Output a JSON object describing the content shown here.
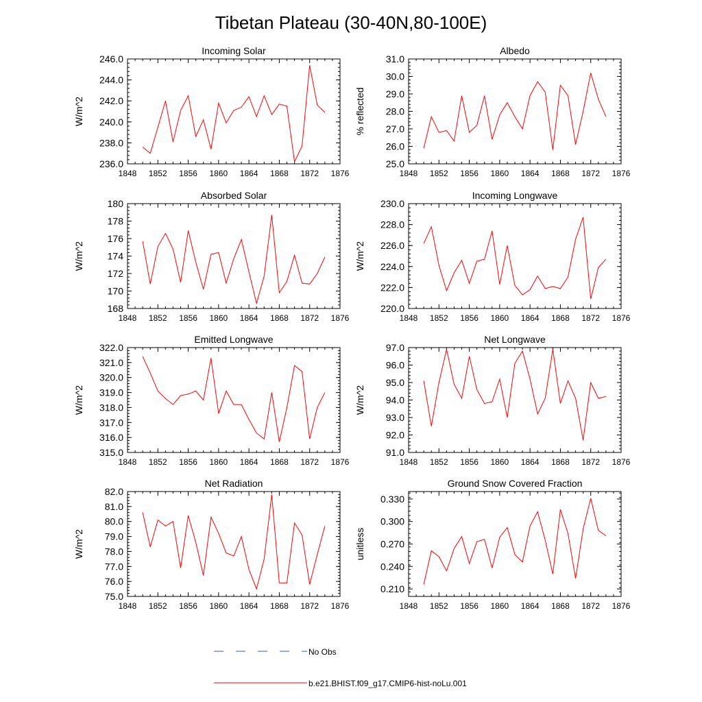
{
  "figure": {
    "title": "Tibetan Plateau (30-40N,80-100E)",
    "line_color": "#ff0000",
    "obs_color": "#3a4fd8",
    "legend": {
      "obs_label": "No Obs",
      "model_label": "b.e21.BHIST.f09_g17.CMIP6-hist-noLu.001"
    }
  },
  "chart_data": [
    {
      "type": "line",
      "title": "Incoming Solar",
      "ylabel": "W/m^2",
      "xlim": [
        1848,
        1876
      ],
      "xticks": [
        1848,
        1852,
        1856,
        1860,
        1864,
        1868,
        1872,
        1876
      ],
      "ylim": [
        236.0,
        246.0
      ],
      "yticks": [
        "236.0",
        "238.0",
        "240.0",
        "242.0",
        "244.0",
        "246.0"
      ],
      "series": [
        {
          "name": "b.e21.BHIST.f09_g17.CMIP6-hist-noLu.001",
          "x": [
            1850,
            1851,
            1852,
            1853,
            1854,
            1855,
            1856,
            1857,
            1858,
            1859,
            1860,
            1861,
            1862,
            1863,
            1864,
            1865,
            1866,
            1867,
            1868,
            1869,
            1870,
            1871,
            1872,
            1873,
            1874
          ],
          "values": [
            237.6,
            237.0,
            239.5,
            242.0,
            238.1,
            241.1,
            242.5,
            238.6,
            240.2,
            237.4,
            241.8,
            239.9,
            241.1,
            241.4,
            242.4,
            240.5,
            242.5,
            240.7,
            241.7,
            241.5,
            236.2,
            237.7,
            245.4,
            241.6,
            240.9
          ]
        }
      ]
    },
    {
      "type": "line",
      "title": "Albedo",
      "ylabel": "% reflected",
      "xlim": [
        1848,
        1876
      ],
      "xticks": [
        1848,
        1852,
        1856,
        1860,
        1864,
        1868,
        1872,
        1876
      ],
      "ylim": [
        25.0,
        31.0
      ],
      "yticks": [
        "25.0",
        "26.0",
        "27.0",
        "28.0",
        "29.0",
        "30.0",
        "31.0"
      ],
      "series": [
        {
          "name": "b.e21.BHIST.f09_g17.CMIP6-hist-noLu.001",
          "x": [
            1850,
            1851,
            1852,
            1853,
            1854,
            1855,
            1856,
            1857,
            1858,
            1859,
            1860,
            1861,
            1862,
            1863,
            1864,
            1865,
            1866,
            1867,
            1868,
            1869,
            1870,
            1871,
            1872,
            1873,
            1874
          ],
          "values": [
            25.9,
            27.7,
            26.8,
            26.9,
            26.3,
            28.9,
            26.8,
            27.2,
            28.9,
            26.4,
            27.8,
            28.5,
            27.7,
            27.0,
            28.9,
            29.7,
            29.1,
            25.8,
            29.5,
            28.9,
            26.1,
            28.0,
            30.2,
            28.7,
            27.7
          ]
        }
      ]
    },
    {
      "type": "line",
      "title": "Absorbed Solar",
      "ylabel": "W/m^2",
      "xlim": [
        1848,
        1876
      ],
      "xticks": [
        1848,
        1852,
        1856,
        1860,
        1864,
        1868,
        1872,
        1876
      ],
      "ylim": [
        168,
        180
      ],
      "yticks": [
        "168",
        "170",
        "172",
        "174",
        "176",
        "178",
        "180"
      ],
      "series": [
        {
          "name": "b.e21.BHIST.f09_g17.CMIP6-hist-noLu.001",
          "x": [
            1850,
            1851,
            1852,
            1853,
            1854,
            1855,
            1856,
            1857,
            1858,
            1859,
            1860,
            1861,
            1862,
            1863,
            1864,
            1865,
            1866,
            1867,
            1868,
            1869,
            1870,
            1871,
            1872,
            1873,
            1874
          ],
          "values": [
            175.7,
            170.8,
            175.1,
            176.6,
            174.8,
            171.0,
            176.9,
            173.3,
            170.2,
            174.2,
            174.4,
            170.9,
            173.7,
            175.9,
            172.2,
            168.6,
            171.7,
            178.7,
            169.8,
            171.1,
            174.1,
            170.9,
            170.8,
            172.0,
            173.9
          ]
        }
      ]
    },
    {
      "type": "line",
      "title": "Incoming Longwave",
      "ylabel": "W/m^2",
      "xlim": [
        1848,
        1876
      ],
      "xticks": [
        1848,
        1852,
        1856,
        1860,
        1864,
        1868,
        1872,
        1876
      ],
      "ylim": [
        220.0,
        230.0
      ],
      "yticks": [
        "220.0",
        "222.0",
        "224.0",
        "226.0",
        "228.0",
        "230.0"
      ],
      "series": [
        {
          "name": "b.e21.BHIST.f09_g17.CMIP6-hist-noLu.001",
          "x": [
            1850,
            1851,
            1852,
            1853,
            1854,
            1855,
            1856,
            1857,
            1858,
            1859,
            1860,
            1861,
            1862,
            1863,
            1864,
            1865,
            1866,
            1867,
            1868,
            1869,
            1870,
            1871,
            1872,
            1873,
            1874
          ],
          "values": [
            226.2,
            227.8,
            224.1,
            221.7,
            223.4,
            224.6,
            222.4,
            224.5,
            224.7,
            227.4,
            222.3,
            226.0,
            222.2,
            221.3,
            221.8,
            223.1,
            221.9,
            222.1,
            221.9,
            223.0,
            226.6,
            228.7,
            220.9,
            223.9,
            224.7
          ]
        }
      ]
    },
    {
      "type": "line",
      "title": "Emitted Longwave",
      "ylabel": "W/m^2",
      "xlim": [
        1848,
        1876
      ],
      "xticks": [
        1848,
        1852,
        1856,
        1860,
        1864,
        1868,
        1872,
        1876
      ],
      "ylim": [
        315.0,
        322.0
      ],
      "yticks": [
        "315.0",
        "316.0",
        "317.0",
        "318.0",
        "319.0",
        "320.0",
        "321.0",
        "322.0"
      ],
      "series": [
        {
          "name": "b.e21.BHIST.f09_g17.CMIP6-hist-noLu.001",
          "x": [
            1850,
            1851,
            1852,
            1853,
            1854,
            1855,
            1856,
            1857,
            1858,
            1859,
            1860,
            1861,
            1862,
            1863,
            1864,
            1865,
            1866,
            1867,
            1868,
            1869,
            1870,
            1871,
            1872,
            1873,
            1874
          ],
          "values": [
            321.4,
            320.3,
            319.1,
            318.6,
            318.2,
            318.8,
            318.9,
            319.1,
            318.5,
            321.3,
            317.6,
            319.1,
            318.2,
            318.2,
            317.2,
            316.3,
            315.9,
            319.0,
            315.7,
            318.0,
            320.8,
            320.4,
            315.9,
            318.0,
            319.0
          ]
        }
      ]
    },
    {
      "type": "line",
      "title": "Net Longwave",
      "ylabel": "W/m^2",
      "xlim": [
        1848,
        1876
      ],
      "xticks": [
        1848,
        1852,
        1856,
        1860,
        1864,
        1868,
        1872,
        1876
      ],
      "ylim": [
        91.0,
        97.0
      ],
      "yticks": [
        "91.0",
        "92.0",
        "93.0",
        "94.0",
        "95.0",
        "96.0",
        "97.0"
      ],
      "series": [
        {
          "name": "b.e21.BHIST.f09_g17.CMIP6-hist-noLu.001",
          "x": [
            1850,
            1851,
            1852,
            1853,
            1854,
            1855,
            1856,
            1857,
            1858,
            1859,
            1860,
            1861,
            1862,
            1863,
            1864,
            1865,
            1866,
            1867,
            1868,
            1869,
            1870,
            1871,
            1872,
            1873,
            1874
          ],
          "values": [
            95.1,
            92.5,
            95.0,
            96.9,
            94.9,
            94.1,
            96.5,
            94.6,
            93.8,
            93.9,
            95.2,
            93.0,
            96.1,
            96.8,
            95.2,
            93.2,
            94.1,
            96.9,
            93.8,
            95.1,
            94.1,
            91.7,
            95.0,
            94.1,
            94.2
          ]
        }
      ]
    },
    {
      "type": "line",
      "title": "Net Radiation",
      "ylabel": "W/m^2",
      "xlim": [
        1848,
        1876
      ],
      "xticks": [
        1848,
        1852,
        1856,
        1860,
        1864,
        1868,
        1872,
        1876
      ],
      "ylim": [
        75.0,
        82.0
      ],
      "yticks": [
        "75.0",
        "76.0",
        "77.0",
        "78.0",
        "79.0",
        "80.0",
        "81.0",
        "82.0"
      ],
      "series": [
        {
          "name": "b.e21.BHIST.f09_g17.CMIP6-hist-noLu.001",
          "x": [
            1850,
            1851,
            1852,
            1853,
            1854,
            1855,
            1856,
            1857,
            1858,
            1859,
            1860,
            1861,
            1862,
            1863,
            1864,
            1865,
            1866,
            1867,
            1868,
            1869,
            1870,
            1871,
            1872,
            1873,
            1874
          ],
          "values": [
            80.6,
            78.3,
            80.1,
            79.7,
            80.0,
            76.9,
            80.4,
            78.6,
            76.4,
            80.3,
            79.2,
            77.9,
            77.7,
            79.0,
            76.8,
            75.5,
            77.5,
            81.8,
            75.9,
            75.9,
            79.9,
            79.1,
            75.8,
            77.8,
            79.7
          ]
        }
      ]
    },
    {
      "type": "line",
      "title": "Ground Snow Covered Fraction",
      "ylabel": "unitless",
      "xlim": [
        1848,
        1876
      ],
      "xticks": [
        1848,
        1852,
        1856,
        1860,
        1864,
        1868,
        1872,
        1876
      ],
      "ylim": [
        0.2,
        0.34
      ],
      "yticks": [
        "0.210",
        "0.240",
        "0.270",
        "0.300",
        "0.330"
      ],
      "ytick_values": [
        0.21,
        0.24,
        0.27,
        0.3,
        0.33
      ],
      "series": [
        {
          "name": "b.e21.BHIST.f09_g17.CMIP6-hist-noLu.001",
          "x": [
            1850,
            1851,
            1852,
            1853,
            1854,
            1855,
            1856,
            1857,
            1858,
            1859,
            1860,
            1861,
            1862,
            1863,
            1864,
            1865,
            1866,
            1867,
            1868,
            1869,
            1870,
            1871,
            1872,
            1873,
            1874
          ],
          "values": [
            0.216,
            0.261,
            0.253,
            0.234,
            0.264,
            0.28,
            0.244,
            0.273,
            0.276,
            0.238,
            0.279,
            0.292,
            0.256,
            0.246,
            0.294,
            0.313,
            0.275,
            0.23,
            0.316,
            0.284,
            0.224,
            0.29,
            0.331,
            0.288,
            0.281
          ]
        }
      ]
    }
  ]
}
